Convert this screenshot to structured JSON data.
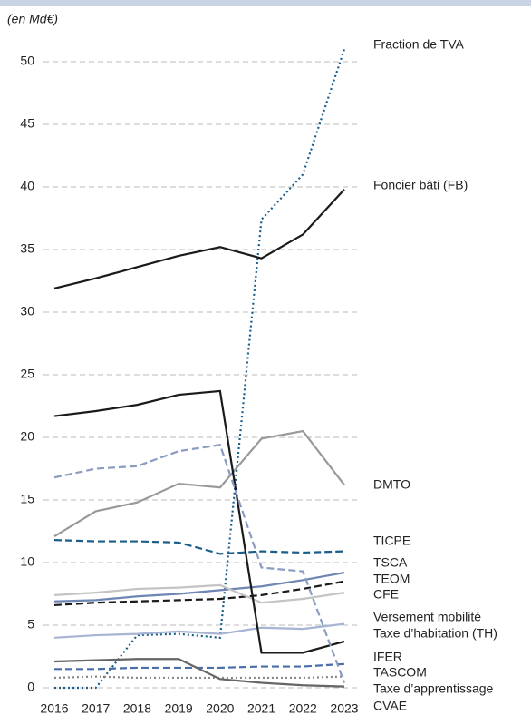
{
  "chart_data": {
    "type": "line",
    "subtitle": "(en Md€)",
    "categories": [
      "2016",
      "2017",
      "2018",
      "2019",
      "2020",
      "2021",
      "2022",
      "2023"
    ],
    "ylim": [
      0,
      52
    ],
    "yticks": [
      0,
      5,
      10,
      15,
      20,
      25,
      30,
      35,
      40,
      45,
      50
    ],
    "grid": true,
    "series": [
      {
        "name": "Fraction de TVA",
        "color": "#1a5e8a",
        "dash": "dotted",
        "values": [
          0,
          0,
          4.2,
          4.3,
          4.0,
          37.4,
          41,
          51
        ]
      },
      {
        "name": "Foncier bâti (FB)",
        "color": "#1a1a1a",
        "dash": "solid",
        "values": [
          31.9,
          32.7,
          33.6,
          34.5,
          35.2,
          34.3,
          36.2,
          39.8
        ]
      },
      {
        "name": "DMTO",
        "color": "#999999",
        "dash": "solid",
        "values": [
          12.1,
          14.1,
          14.8,
          16.3,
          16.0,
          19.9,
          20.5,
          16.2
        ]
      },
      {
        "name": "TICPE",
        "color": "#1a5e8a",
        "dash": "dashed",
        "values": [
          11.8,
          11.7,
          11.7,
          11.6,
          10.7,
          10.9,
          10.8,
          10.9
        ]
      },
      {
        "name": "TSCA",
        "color": "#6e86b3",
        "dash": "solid",
        "values": [
          6.9,
          7.0,
          7.3,
          7.5,
          7.8,
          8.1,
          8.6,
          9.2
        ]
      },
      {
        "name": "TEOM",
        "color": "#1a1a1a",
        "dash": "dashed",
        "values": [
          6.6,
          6.8,
          6.9,
          7.0,
          7.1,
          7.4,
          7.9,
          8.5
        ]
      },
      {
        "name": "CFE",
        "color": "#c4c4c4",
        "dash": "solid",
        "values": [
          7.4,
          7.6,
          7.9,
          8.0,
          8.2,
          6.8,
          7.1,
          7.6
        ]
      },
      {
        "name": "Versement mobilité",
        "color": "#a7b5d3",
        "dash": "solid",
        "values": [
          4.0,
          4.2,
          4.3,
          4.5,
          4.3,
          4.8,
          4.7,
          5.1
        ]
      },
      {
        "name": "Taxe d’habitation (TH)",
        "color": "#1a1a1a",
        "dash": "solid",
        "values": [
          21.7,
          22.1,
          22.6,
          23.4,
          23.7,
          2.8,
          2.8,
          3.7
        ]
      },
      {
        "name": "IFER",
        "color": "#4a6ea8",
        "dash": "dashed",
        "values": [
          1.5,
          1.5,
          1.6,
          1.6,
          1.6,
          1.7,
          1.7,
          1.9
        ]
      },
      {
        "name": "TASCOM",
        "color": "#888888",
        "dash": "dotted",
        "values": [
          0.8,
          0.9,
          0.8,
          0.8,
          0.8,
          0.8,
          0.8,
          0.9
        ]
      },
      {
        "name": "Taxe d’apprentissage",
        "color": "#666666",
        "dash": "solid",
        "values": [
          2.1,
          2.2,
          2.3,
          2.3,
          0.7,
          0.4,
          0.2,
          0.1
        ]
      },
      {
        "name": "CVAE",
        "color": "#8a9cc0",
        "dash": "dashed",
        "values": [
          16.8,
          17.5,
          17.7,
          18.9,
          19.4,
          9.6,
          9.3,
          0.4
        ]
      }
    ]
  }
}
